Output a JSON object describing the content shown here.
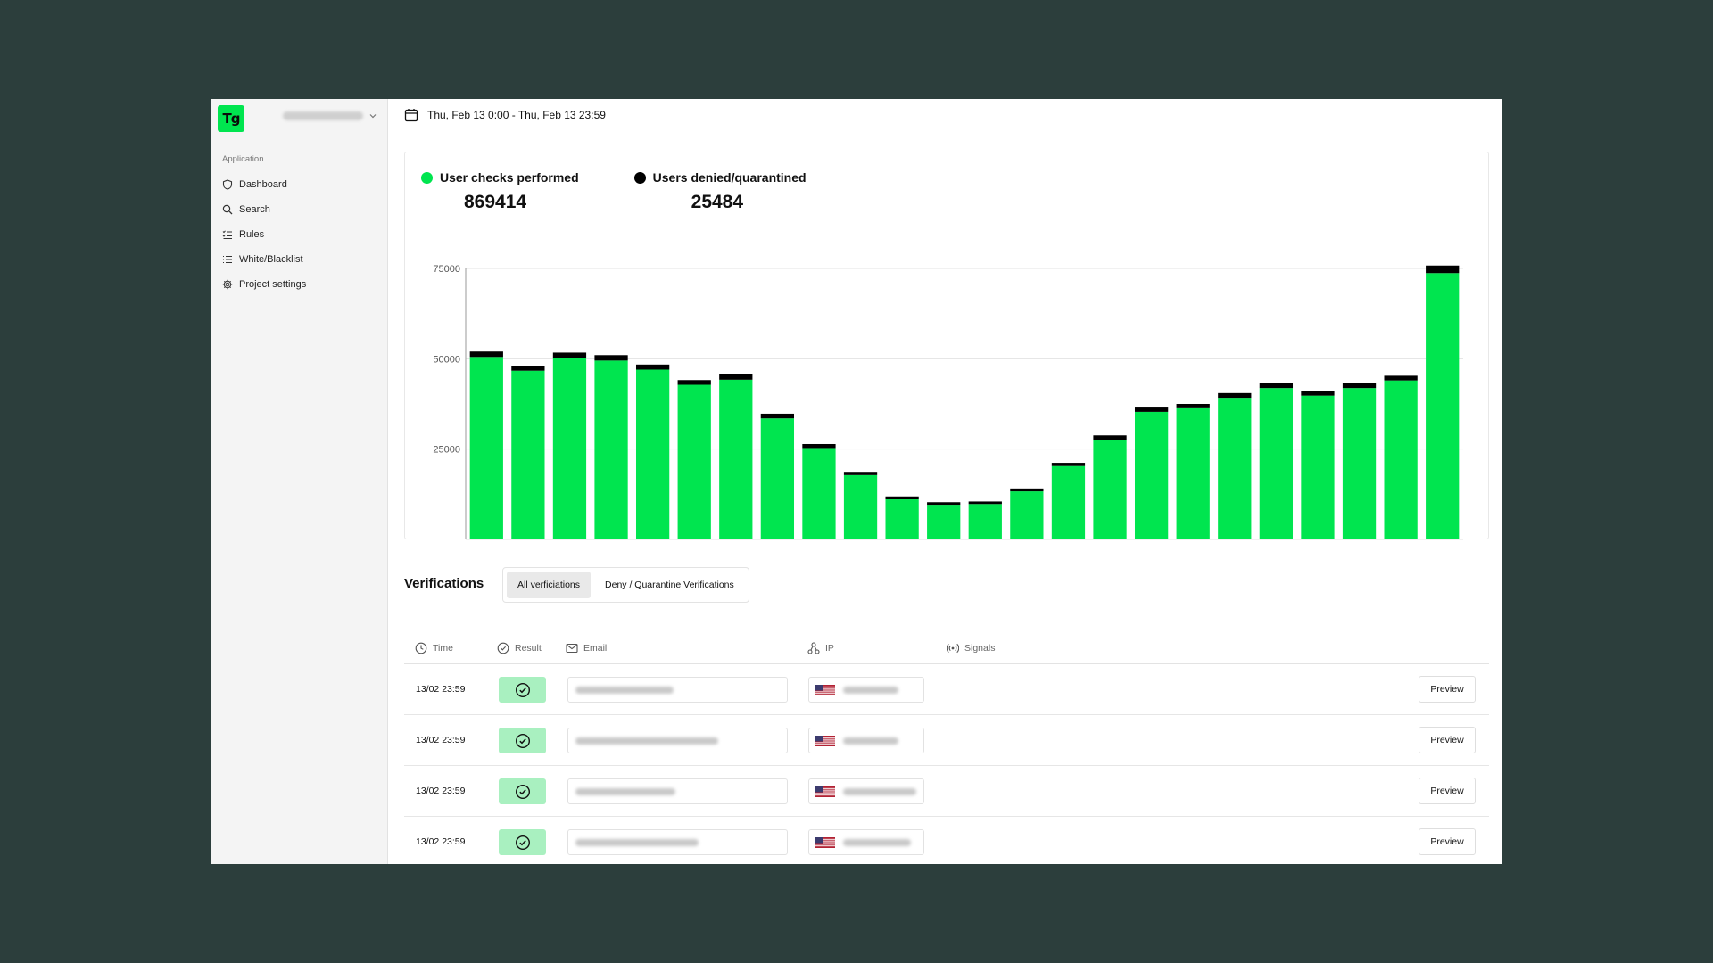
{
  "sidebar": {
    "logo_text": "Tg",
    "section_label": "Application",
    "items": [
      {
        "label": "Dashboard",
        "icon": "shield-icon"
      },
      {
        "label": "Search",
        "icon": "search-icon"
      },
      {
        "label": "Rules",
        "icon": "rules-icon"
      },
      {
        "label": "White/Blacklist",
        "icon": "list-icon"
      },
      {
        "label": "Project settings",
        "icon": "gear-icon"
      }
    ]
  },
  "header": {
    "date_range": "Thu, Feb 13 0:00 - Thu, Feb 13 23:59"
  },
  "legend": {
    "checks_label": "User checks performed",
    "checks_value": "869414",
    "denied_label": "Users denied/quarantined",
    "denied_value": "25484"
  },
  "colors": {
    "accent": "#00e54f",
    "denied": "#000000",
    "success_bg": "#a9f0c0",
    "window_bg": "#2c3e3c"
  },
  "chart_data": {
    "type": "bar",
    "stacked": true,
    "x": [
      0,
      1,
      2,
      3,
      4,
      5,
      6,
      7,
      8,
      9,
      10,
      11,
      12,
      13,
      14,
      15,
      16,
      17,
      18,
      19,
      20,
      21,
      22,
      23
    ],
    "series": [
      {
        "name": "User checks performed",
        "color": "#00e54f",
        "values": [
          50500,
          46700,
          50200,
          49500,
          47000,
          42800,
          44200,
          33500,
          25300,
          17800,
          11100,
          9600,
          9800,
          13300,
          20300,
          27600,
          35300,
          36300,
          39200,
          41900,
          39800,
          41900,
          44000,
          73700
        ]
      },
      {
        "name": "Users denied/quarantined",
        "color": "#000000",
        "values": [
          1500,
          1400,
          1500,
          1500,
          1400,
          1300,
          1600,
          1300,
          1100,
          900,
          800,
          700,
          700,
          800,
          900,
          1200,
          1200,
          1200,
          1300,
          1400,
          1300,
          1300,
          1300,
          2100
        ]
      }
    ],
    "yticks": [
      25000,
      50000,
      75000
    ],
    "ylim": [
      0,
      75000
    ],
    "grid": true,
    "title": "",
    "xlabel": "",
    "ylabel": ""
  },
  "verifications": {
    "title": "Verifications",
    "tabs": [
      "All verficiations",
      "Deny / Quarantine Verifications"
    ],
    "columns": [
      "Time",
      "Result",
      "Email",
      "IP",
      "Signals"
    ],
    "preview_label": "Preview",
    "rows": [
      {
        "time": "13/02 23:59",
        "result": "success-check-icon",
        "flag": "us-flag-icon"
      },
      {
        "time": "13/02 23:59",
        "result": "success-check-icon",
        "flag": "us-flag-icon"
      },
      {
        "time": "13/02 23:59",
        "result": "success-check-icon",
        "flag": "us-flag-icon"
      },
      {
        "time": "13/02 23:59",
        "result": "success-check-icon",
        "flag": "us-flag-icon"
      }
    ]
  }
}
